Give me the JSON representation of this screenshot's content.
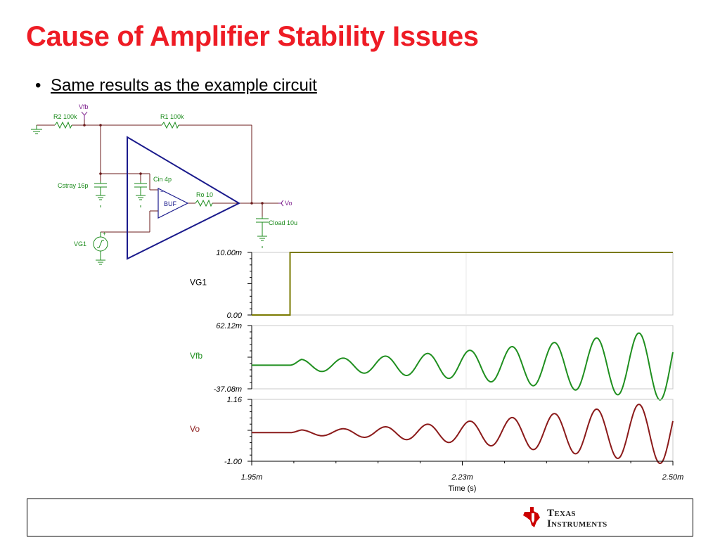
{
  "slide": {
    "title": "Cause of Amplifier Stability Issues",
    "bullet": "Same results as the example circuit"
  },
  "circuit": {
    "labels": {
      "vfb": "Vfb",
      "r2": "R2 100k",
      "r1": "R1 100k",
      "cin": "Cin 4p",
      "cstray": "Cstray 16p",
      "ro": "Ro 10",
      "buf": "BUF",
      "vo": "Vo",
      "cload": "Cload 10u",
      "vg1": "VG1"
    },
    "colors": {
      "wire": "#6b1b1b",
      "component": "#1a8a1a",
      "opamp": "#1a1a8c",
      "probe": "#7a1a8a"
    }
  },
  "chart_data": {
    "type": "line",
    "xlabel": "Time (s)",
    "x_ticks": [
      "1.95m",
      "2.23m",
      "2.50m"
    ],
    "xlim": [
      1.95,
      2.5
    ],
    "x_unit": "ms",
    "panels": [
      {
        "name": "VG1",
        "y_ticks": [
          "10.00m",
          "0.00"
        ],
        "ylim": [
          0,
          10
        ],
        "y_unit": "mV",
        "color": "#7a7a00",
        "step": {
          "low": 0,
          "high": 10,
          "t_rise": 2.0
        }
      },
      {
        "name": "Vfb",
        "y_ticks": [
          "62.12m",
          "-37.08m"
        ],
        "ylim": [
          -37.08,
          62.12
        ],
        "y_unit": "mV",
        "color": "#1f8f1f",
        "oscillation": {
          "baseline": 0,
          "t_start": 2.0,
          "period": 0.0552,
          "amp_start": 9,
          "amp_end": 57,
          "phase": 0.7
        }
      },
      {
        "name": "Vo",
        "y_ticks": [
          "1.16",
          "-1.00"
        ],
        "ylim": [
          -1.0,
          1.16
        ],
        "y_unit": "V",
        "color": "#8b1a1a",
        "oscillation": {
          "baseline": 0,
          "t_start": 2.0,
          "period": 0.0552,
          "amp_start": 0.09,
          "amp_end": 1.13,
          "phase": 0.45
        }
      }
    ],
    "grid": true
  },
  "logo": {
    "line1_cap": "T",
    "line1_rest": "EXAS",
    "line2_cap": "I",
    "line2_rest": "NSTRUMENTS",
    "color": "#cc0000"
  }
}
